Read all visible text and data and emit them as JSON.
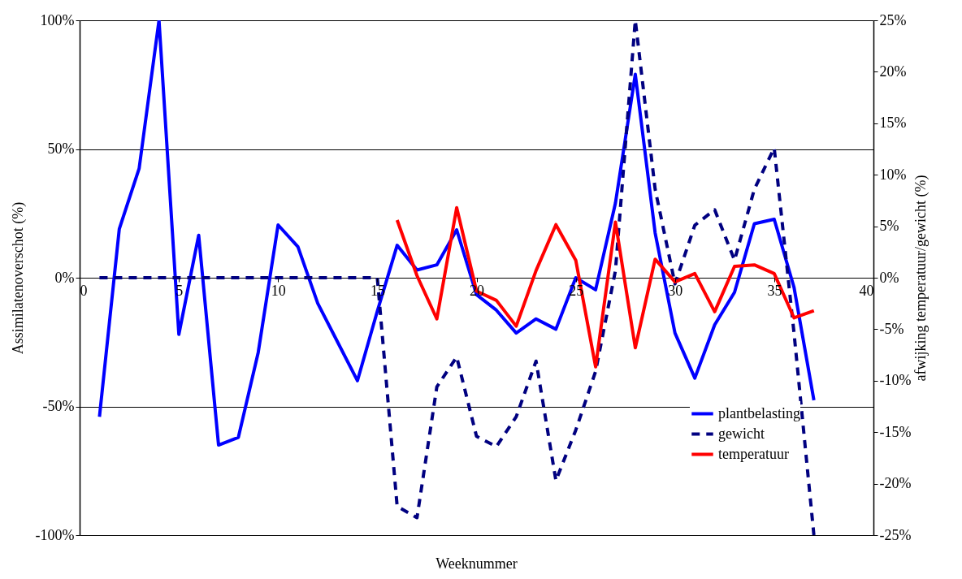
{
  "chart_data": {
    "type": "line",
    "xlabel": "Weeknummer",
    "ylabel": "Assimilatenoverschot (%)",
    "y2label": "afwijking temperatuur/gewicht (%)",
    "x": [
      1,
      2,
      3,
      4,
      5,
      6,
      7,
      8,
      9,
      10,
      11,
      12,
      13,
      14,
      15,
      16,
      17,
      18,
      19,
      20,
      21,
      22,
      23,
      24,
      25,
      26,
      27,
      28,
      29,
      30,
      31,
      32,
      33,
      34,
      35,
      36,
      37
    ],
    "series": [
      {
        "name": "plantbelasting",
        "color": "#0000ff",
        "line_style": "solid",
        "values": [
          -54,
          19,
          42.5,
          100,
          -22,
          16.5,
          -65,
          -62,
          -29,
          20.5,
          12,
          -10,
          -25,
          -40,
          -13,
          12.6,
          3,
          5,
          18.6,
          -6.6,
          -12.6,
          -21.5,
          -16,
          -20,
          0,
          -4.7,
          29,
          79,
          17.4,
          -21.5,
          -39,
          -18.3,
          -5.7,
          21,
          22.7,
          -3.8,
          -47.6
        ]
      },
      {
        "name": "gewicht",
        "color": "#000080",
        "line_style": "dashed",
        "axis": "y2",
        "values": [
          0,
          0,
          0,
          0,
          0,
          0,
          0,
          0,
          0,
          0,
          0,
          0,
          0,
          0,
          0,
          -22.2,
          -23.3,
          -10.6,
          -7.7,
          -15.4,
          -16.4,
          -13.5,
          -8.1,
          -19.7,
          -14.8,
          -9.1,
          0.7,
          25,
          8.6,
          -0.6,
          5.1,
          6.6,
          1.7,
          8.6,
          12.6,
          -5.4,
          -25
        ]
      },
      {
        "name": "temperatuur",
        "color": "#ff0000",
        "line_style": "solid",
        "axis": "y2",
        "x": [
          16,
          17,
          18,
          19,
          20,
          21,
          22,
          23,
          24,
          25,
          26,
          27,
          28,
          29,
          30,
          31,
          32,
          33,
          34,
          35,
          36,
          37
        ],
        "values": [
          5.6,
          0.2,
          -4,
          6.8,
          -1.3,
          -2.2,
          -4.7,
          0.7,
          5.15,
          1.7,
          -8.65,
          5.4,
          -6.8,
          1.8,
          -0.4,
          0.4,
          -3.3,
          1.1,
          1.25,
          0.4,
          -3.9,
          -3.2
        ]
      }
    ],
    "xlim": [
      0,
      40
    ],
    "xticks": [
      0,
      5,
      10,
      15,
      20,
      25,
      30,
      35,
      40
    ],
    "ylim": [
      -100,
      100
    ],
    "yticks": [
      {
        "value": -100,
        "label": "-100%"
      },
      {
        "value": -50,
        "label": "-50%"
      },
      {
        "value": 0,
        "label": "0%"
      },
      {
        "value": 50,
        "label": "50%"
      },
      {
        "value": 100,
        "label": "100%"
      }
    ],
    "y2lim": [
      -25,
      25
    ],
    "y2ticks": [
      {
        "value": -25,
        "label": "-25%"
      },
      {
        "value": -20,
        "label": "-20%"
      },
      {
        "value": -15,
        "label": "-15%"
      },
      {
        "value": -10,
        "label": "-10%"
      },
      {
        "value": -5,
        "label": "-5%"
      },
      {
        "value": 0,
        "label": "0%"
      },
      {
        "value": 5,
        "label": "5%"
      },
      {
        "value": 10,
        "label": "10%"
      },
      {
        "value": 15,
        "label": "15%"
      },
      {
        "value": 20,
        "label": "20%"
      },
      {
        "value": 25,
        "label": "25%"
      }
    ],
    "grid": "y",
    "legend": "bottom right",
    "marker": "none"
  }
}
